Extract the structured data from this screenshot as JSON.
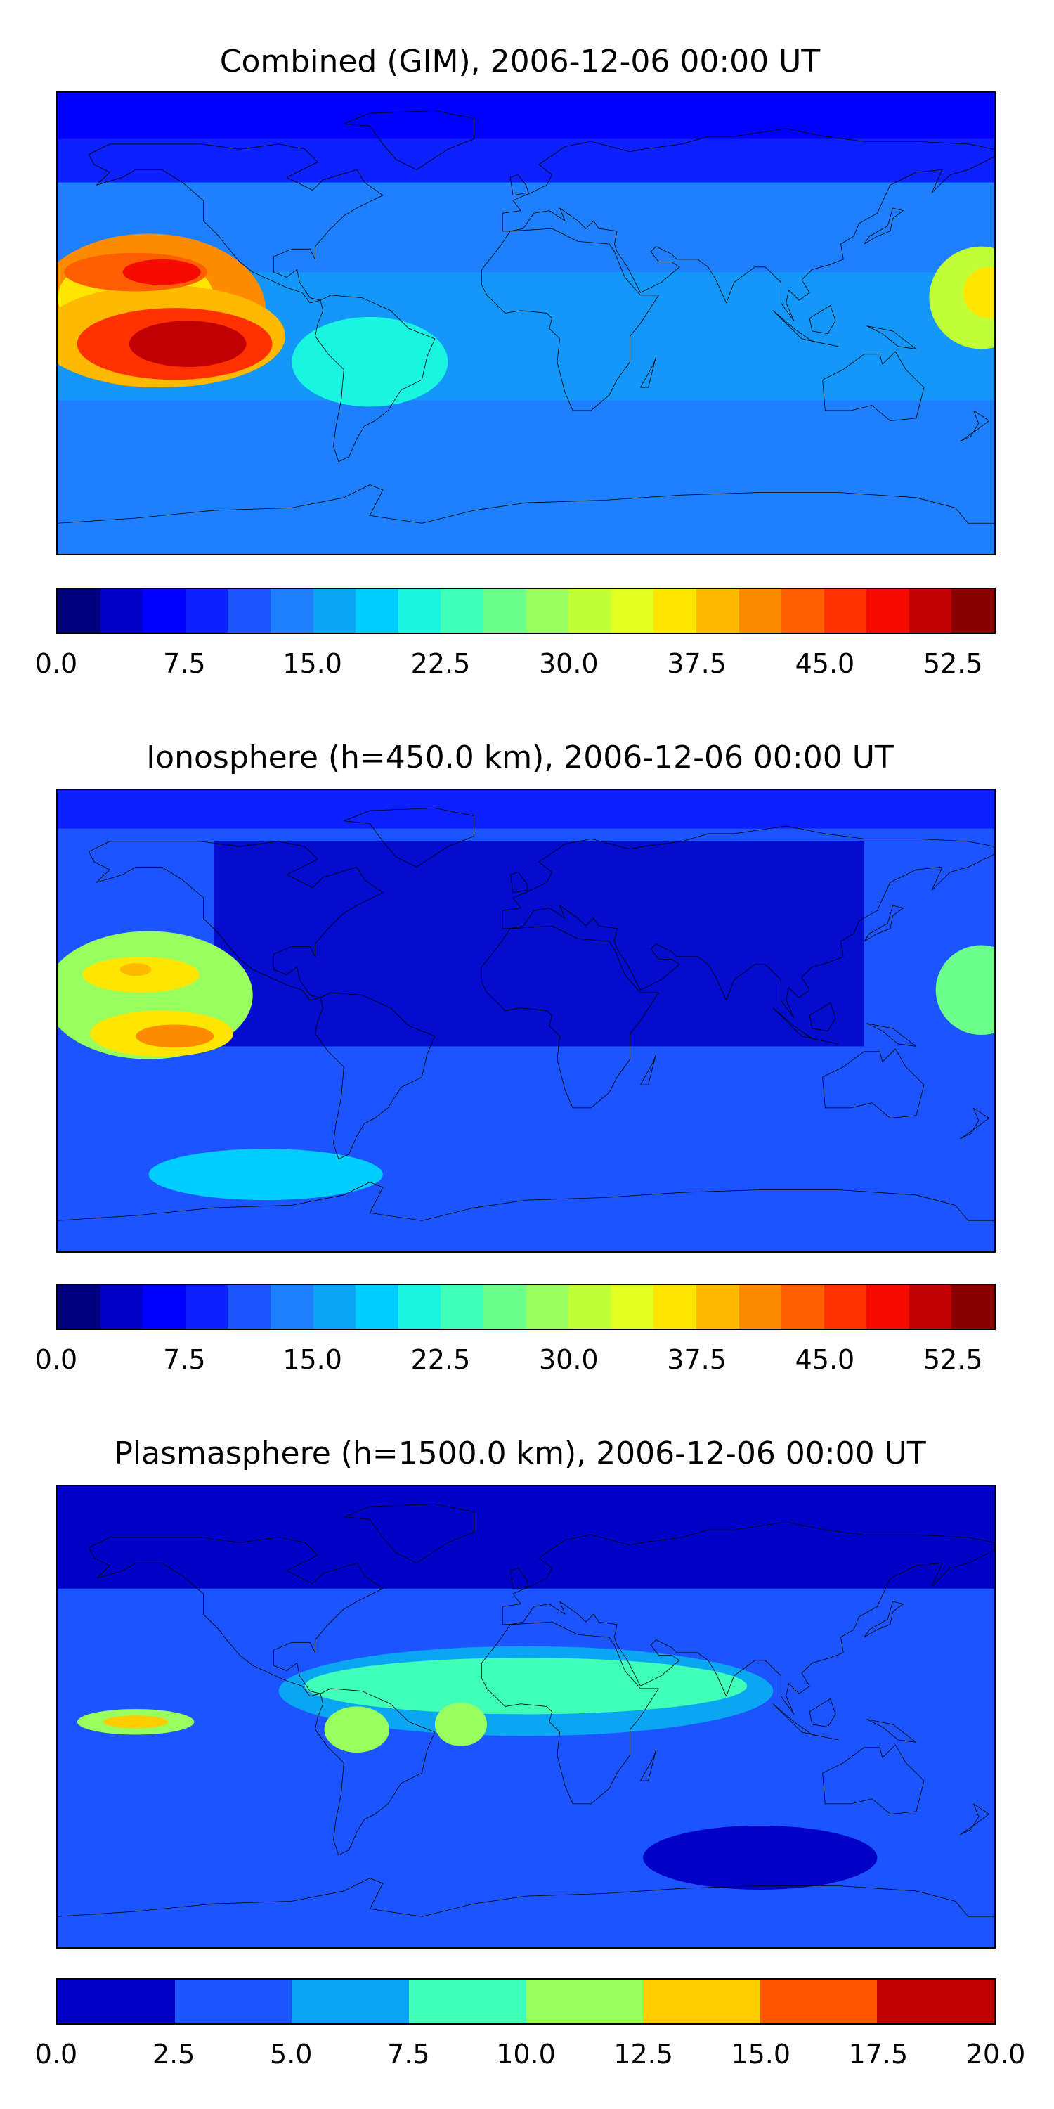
{
  "panels": [
    {
      "title": "Combined (GIM), 2006-12-06 00:00 UT",
      "colorbar": {
        "colors": [
          "#00007f",
          "#0000c6",
          "#0000ff",
          "#0d20ff",
          "#1c55ff",
          "#1e80ff",
          "#0ba6f3",
          "#00ccff",
          "#19f5e0",
          "#40ffb7",
          "#6cff8b",
          "#98ff5e",
          "#c1ff36",
          "#e0ff1e",
          "#ffe600",
          "#ffb900",
          "#ff8c00",
          "#ff5f00",
          "#ff3100",
          "#f60b00",
          "#c00000",
          "#8a0000"
        ],
        "ticks": [
          "0.0",
          "7.5",
          "15.0",
          "22.5",
          "30.0",
          "37.5",
          "45.0",
          "52.5"
        ],
        "tick_values": [
          0,
          7.5,
          15,
          22.5,
          30,
          37.5,
          45,
          52.5
        ],
        "range": [
          0,
          55
        ]
      },
      "blobs": [
        {
          "lon": -145,
          "lat": 5,
          "rx": 90,
          "ry": 60,
          "color": "#ff8c00"
        },
        {
          "lon": -150,
          "lat": 10,
          "rx": 60,
          "ry": 35,
          "color": "#ffe600"
        },
        {
          "lon": -140,
          "lat": -5,
          "rx": 95,
          "ry": 40,
          "color": "#ffb900"
        },
        {
          "lon": -135,
          "lat": -8,
          "rx": 75,
          "ry": 28,
          "color": "#ff3100"
        },
        {
          "lon": -130,
          "lat": -8,
          "rx": 45,
          "ry": 18,
          "color": "#c00000"
        },
        {
          "lon": -150,
          "lat": 20,
          "rx": 55,
          "ry": 15,
          "color": "#ff5f00"
        },
        {
          "lon": -140,
          "lat": 20,
          "rx": 30,
          "ry": 10,
          "color": "#f60b00"
        },
        {
          "lon": 175,
          "lat": 10,
          "rx": 40,
          "ry": 40,
          "color": "#c1ff36"
        },
        {
          "lon": 178,
          "lat": 12,
          "rx": 20,
          "ry": 20,
          "color": "#ffe600"
        },
        {
          "lon": -60,
          "lat": -15,
          "rx": 60,
          "ry": 35,
          "color": "#19f5e0"
        }
      ]
    },
    {
      "title": "Ionosphere  (h=450.0 km), 2006-12-06 00:00 UT",
      "colorbar": {
        "colors": [
          "#00007f",
          "#0000c6",
          "#0000ff",
          "#0d20ff",
          "#1c55ff",
          "#1e80ff",
          "#0ba6f3",
          "#00ccff",
          "#19f5e0",
          "#40ffb7",
          "#6cff8b",
          "#98ff5e",
          "#c1ff36",
          "#e0ff1e",
          "#ffe600",
          "#ffb900",
          "#ff8c00",
          "#ff5f00",
          "#ff3100",
          "#f60b00",
          "#c00000",
          "#8a0000"
        ],
        "ticks": [
          "0.0",
          "7.5",
          "15.0",
          "22.5",
          "30.0",
          "37.5",
          "45.0",
          "52.5"
        ],
        "tick_values": [
          0,
          7.5,
          15,
          22.5,
          30,
          37.5,
          45,
          52.5
        ],
        "range": [
          0,
          55
        ]
      },
      "blobs": [
        {
          "lon": -145,
          "lat": 10,
          "rx": 80,
          "ry": 50,
          "color": "#98ff5e"
        },
        {
          "lon": -148,
          "lat": 18,
          "rx": 45,
          "ry": 14,
          "color": "#ffe600"
        },
        {
          "lon": -150,
          "lat": 20,
          "rx": 12,
          "ry": 5,
          "color": "#ffb900"
        },
        {
          "lon": -140,
          "lat": -5,
          "rx": 55,
          "ry": 18,
          "color": "#ffe600"
        },
        {
          "lon": -135,
          "lat": -6,
          "rx": 30,
          "ry": 9,
          "color": "#ff8c00"
        },
        {
          "lon": 175,
          "lat": 12,
          "rx": 35,
          "ry": 35,
          "color": "#6cff8b"
        },
        {
          "lon": -100,
          "lat": -60,
          "rx": 90,
          "ry": 20,
          "color": "#00ccff"
        }
      ]
    },
    {
      "title": "Plasmasphere (h=1500.0 km), 2006-12-06 00:00 UT",
      "colorbar": {
        "colors": [
          "#0000c6",
          "#1c55ff",
          "#0ba6f3",
          "#40ffb7",
          "#98ff5e",
          "#ffcc00",
          "#ff5500",
          "#c00000"
        ],
        "ticks": [
          "0.0",
          "2.5",
          "5.0",
          "7.5",
          "10.0",
          "12.5",
          "15.0",
          "17.5",
          "20.0"
        ],
        "tick_values": [
          0,
          2.5,
          5,
          7.5,
          10,
          12.5,
          15,
          17.5,
          20
        ],
        "range": [
          0,
          20
        ]
      },
      "blobs": [
        {
          "lon": 0,
          "lat": 10,
          "rx": 190,
          "ry": 35,
          "color": "#0ba6f3"
        },
        {
          "lon": 0,
          "lat": 12,
          "rx": 170,
          "ry": 22,
          "color": "#40ffb7"
        },
        {
          "lon": -65,
          "lat": -5,
          "rx": 25,
          "ry": 18,
          "color": "#98ff5e"
        },
        {
          "lon": -25,
          "lat": -3,
          "rx": 20,
          "ry": 17,
          "color": "#98ff5e"
        },
        {
          "lon": -150,
          "lat": -2,
          "rx": 45,
          "ry": 10,
          "color": "#98ff5e"
        },
        {
          "lon": -150,
          "lat": -2,
          "rx": 25,
          "ry": 5,
          "color": "#ffcc00"
        },
        {
          "lon": 90,
          "lat": -55,
          "rx": 90,
          "ry": 25,
          "color": "#0000c6"
        }
      ]
    }
  ]
}
